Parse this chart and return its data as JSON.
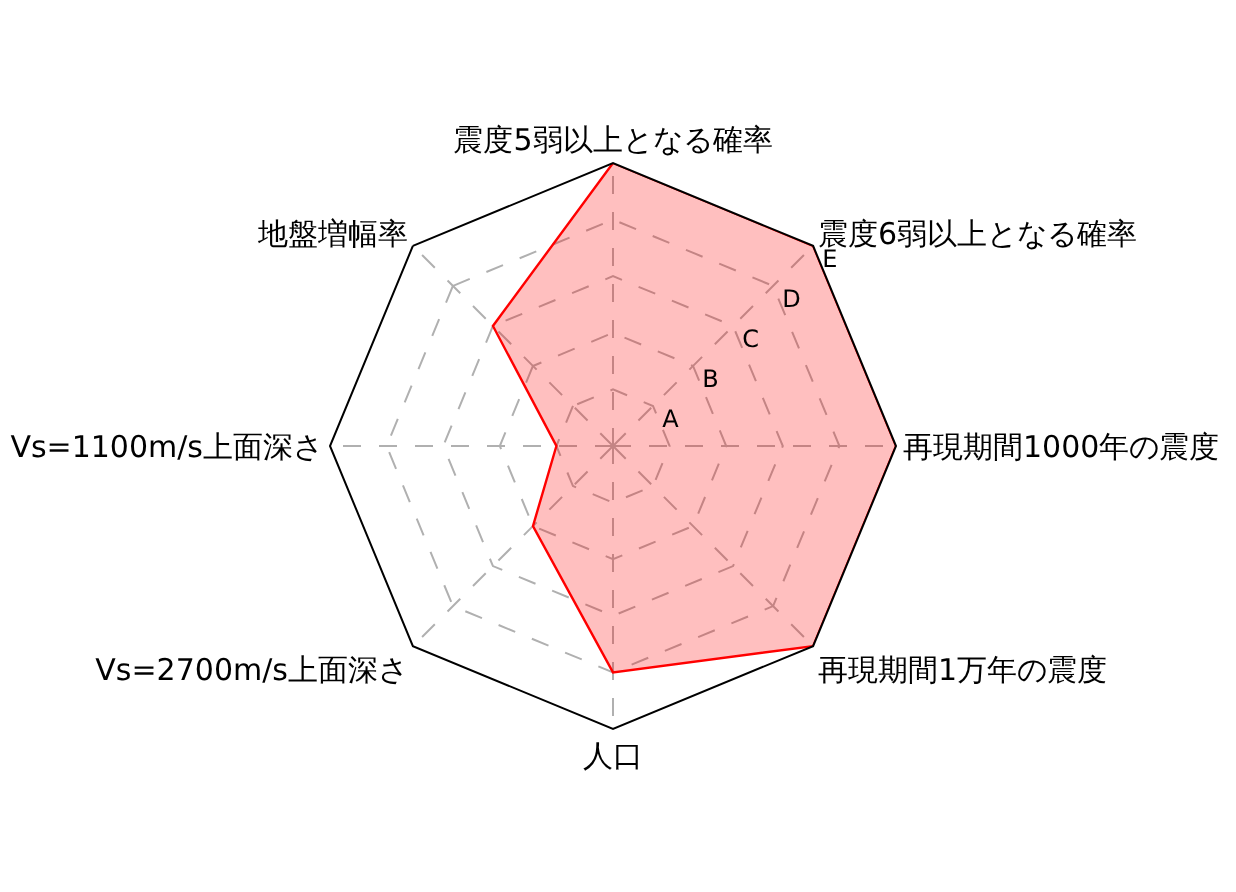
{
  "chart_data": {
    "type": "radar",
    "categories": [
      "震度5弱以上となる確率",
      "震度6弱以上となる確率",
      "再現期間1000年の震度",
      "再現期間1万年の震度",
      "人口",
      "Vs=2700m/s上面深さ",
      "Vs=1100m/s上面深さ",
      "地盤増幅率"
    ],
    "series": [
      {
        "color": "#ff0000",
        "values": [
          5,
          5,
          5,
          5,
          4,
          2,
          1,
          3
        ]
      }
    ],
    "ylim": [
      0,
      5
    ],
    "yticks": [
      {
        "value": 1,
        "label": "A"
      },
      {
        "value": 2,
        "label": "B"
      },
      {
        "value": 3,
        "label": "C"
      },
      {
        "value": 4,
        "label": "D"
      },
      {
        "value": 5,
        "label": "E"
      }
    ],
    "grid": true
  }
}
